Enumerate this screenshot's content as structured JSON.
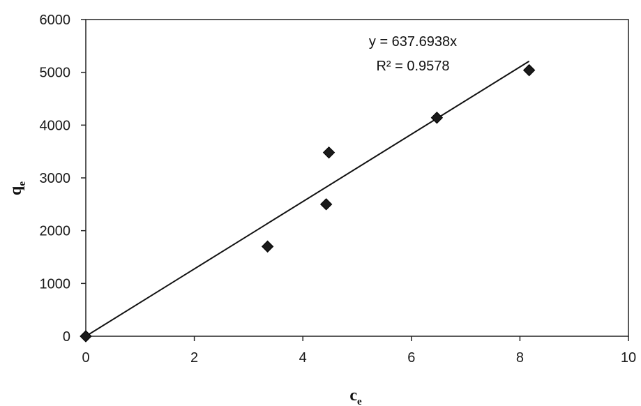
{
  "chart_data": {
    "type": "scatter",
    "x_label": {
      "main": "c",
      "sub": "e"
    },
    "y_label": {
      "main": "q",
      "sub": "e"
    },
    "xlim": [
      0,
      10
    ],
    "ylim": [
      0,
      6000
    ],
    "x_ticks": [
      0,
      2,
      4,
      6,
      8,
      10
    ],
    "y_ticks": [
      0,
      1000,
      2000,
      3000,
      4000,
      5000,
      6000
    ],
    "grid": false,
    "series": [
      {
        "points": [
          {
            "x": 0,
            "y": 0
          },
          {
            "x": 3.35,
            "y": 1700
          },
          {
            "x": 4.43,
            "y": 2500
          },
          {
            "x": 4.48,
            "y": 3480
          },
          {
            "x": 6.47,
            "y": 4140
          },
          {
            "x": 8.17,
            "y": 5040
          }
        ]
      }
    ],
    "trendline": {
      "slope": 637.6938,
      "intercept": 0,
      "x_range": [
        0,
        8.17
      ]
    },
    "annotations": {
      "equation": "y = 637.6938x",
      "r_squared": "R² = 0.9578"
    },
    "colors": {
      "marker": "#1a1a1a",
      "line": "#111111",
      "axis": "#222222"
    }
  }
}
